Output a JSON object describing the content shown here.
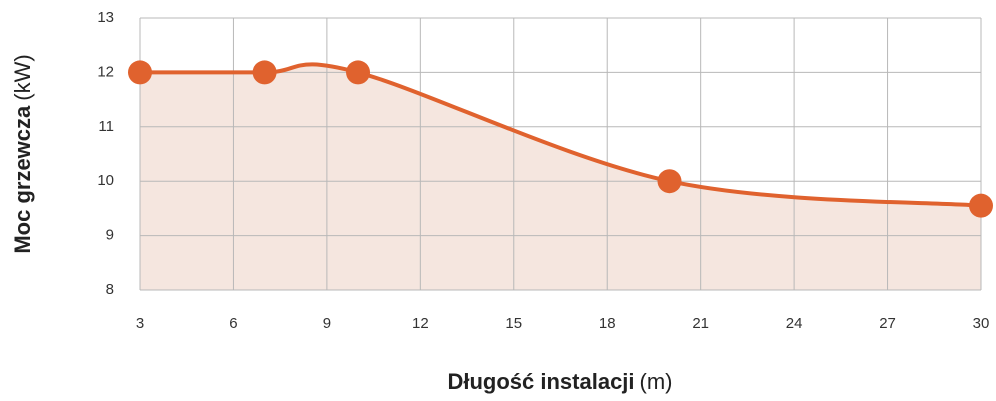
{
  "chart_data": {
    "type": "line",
    "x_label": "Długość instalacji",
    "x_unit": "(m)",
    "y_label": "Moc grzewcza",
    "y_unit": "(kW)",
    "x": [
      3,
      7,
      10,
      20,
      30
    ],
    "series": [
      {
        "color": "#e0622e",
        "values": [
          12,
          12,
          12,
          10,
          9.55
        ]
      }
    ],
    "area_color": "#f5e6df",
    "xlim": [
      3,
      30
    ],
    "xticks": [
      3,
      6,
      9,
      12,
      15,
      18,
      21,
      24,
      27,
      30
    ],
    "ylim": [
      8,
      13
    ],
    "yticks": [
      8,
      9,
      10,
      11,
      12,
      13
    ],
    "grid": true
  }
}
